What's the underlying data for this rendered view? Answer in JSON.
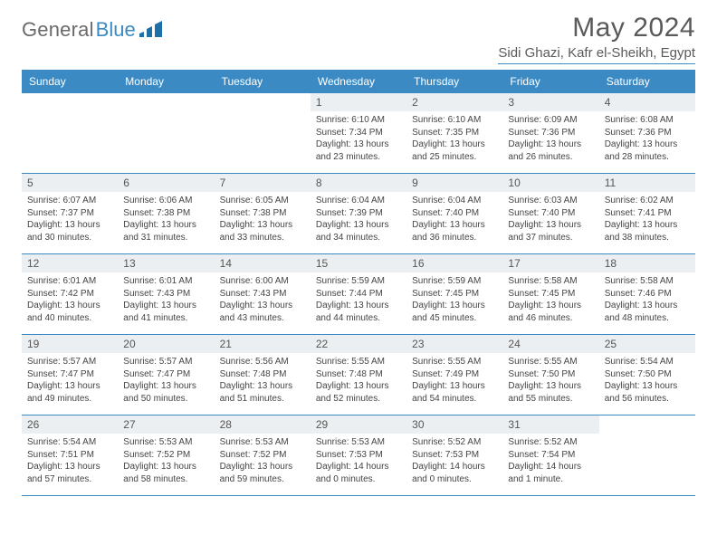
{
  "logo": {
    "text1": "General",
    "text2": "Blue"
  },
  "title": "May 2024",
  "location": "Sidi Ghazi, Kafr el-Sheikh, Egypt",
  "colors": {
    "accent": "#3b8ac4",
    "dayHeaderBg": "#eceff1",
    "text": "#444444"
  },
  "weekdays": [
    "Sunday",
    "Monday",
    "Tuesday",
    "Wednesday",
    "Thursday",
    "Friday",
    "Saturday"
  ],
  "weeks": [
    [
      {
        "n": "",
        "sr": "",
        "ss": "",
        "dl": ""
      },
      {
        "n": "",
        "sr": "",
        "ss": "",
        "dl": ""
      },
      {
        "n": "",
        "sr": "",
        "ss": "",
        "dl": ""
      },
      {
        "n": "1",
        "sr": "Sunrise: 6:10 AM",
        "ss": "Sunset: 7:34 PM",
        "dl": "Daylight: 13 hours and 23 minutes."
      },
      {
        "n": "2",
        "sr": "Sunrise: 6:10 AM",
        "ss": "Sunset: 7:35 PM",
        "dl": "Daylight: 13 hours and 25 minutes."
      },
      {
        "n": "3",
        "sr": "Sunrise: 6:09 AM",
        "ss": "Sunset: 7:36 PM",
        "dl": "Daylight: 13 hours and 26 minutes."
      },
      {
        "n": "4",
        "sr": "Sunrise: 6:08 AM",
        "ss": "Sunset: 7:36 PM",
        "dl": "Daylight: 13 hours and 28 minutes."
      }
    ],
    [
      {
        "n": "5",
        "sr": "Sunrise: 6:07 AM",
        "ss": "Sunset: 7:37 PM",
        "dl": "Daylight: 13 hours and 30 minutes."
      },
      {
        "n": "6",
        "sr": "Sunrise: 6:06 AM",
        "ss": "Sunset: 7:38 PM",
        "dl": "Daylight: 13 hours and 31 minutes."
      },
      {
        "n": "7",
        "sr": "Sunrise: 6:05 AM",
        "ss": "Sunset: 7:38 PM",
        "dl": "Daylight: 13 hours and 33 minutes."
      },
      {
        "n": "8",
        "sr": "Sunrise: 6:04 AM",
        "ss": "Sunset: 7:39 PM",
        "dl": "Daylight: 13 hours and 34 minutes."
      },
      {
        "n": "9",
        "sr": "Sunrise: 6:04 AM",
        "ss": "Sunset: 7:40 PM",
        "dl": "Daylight: 13 hours and 36 minutes."
      },
      {
        "n": "10",
        "sr": "Sunrise: 6:03 AM",
        "ss": "Sunset: 7:40 PM",
        "dl": "Daylight: 13 hours and 37 minutes."
      },
      {
        "n": "11",
        "sr": "Sunrise: 6:02 AM",
        "ss": "Sunset: 7:41 PM",
        "dl": "Daylight: 13 hours and 38 minutes."
      }
    ],
    [
      {
        "n": "12",
        "sr": "Sunrise: 6:01 AM",
        "ss": "Sunset: 7:42 PM",
        "dl": "Daylight: 13 hours and 40 minutes."
      },
      {
        "n": "13",
        "sr": "Sunrise: 6:01 AM",
        "ss": "Sunset: 7:43 PM",
        "dl": "Daylight: 13 hours and 41 minutes."
      },
      {
        "n": "14",
        "sr": "Sunrise: 6:00 AM",
        "ss": "Sunset: 7:43 PM",
        "dl": "Daylight: 13 hours and 43 minutes."
      },
      {
        "n": "15",
        "sr": "Sunrise: 5:59 AM",
        "ss": "Sunset: 7:44 PM",
        "dl": "Daylight: 13 hours and 44 minutes."
      },
      {
        "n": "16",
        "sr": "Sunrise: 5:59 AM",
        "ss": "Sunset: 7:45 PM",
        "dl": "Daylight: 13 hours and 45 minutes."
      },
      {
        "n": "17",
        "sr": "Sunrise: 5:58 AM",
        "ss": "Sunset: 7:45 PM",
        "dl": "Daylight: 13 hours and 46 minutes."
      },
      {
        "n": "18",
        "sr": "Sunrise: 5:58 AM",
        "ss": "Sunset: 7:46 PM",
        "dl": "Daylight: 13 hours and 48 minutes."
      }
    ],
    [
      {
        "n": "19",
        "sr": "Sunrise: 5:57 AM",
        "ss": "Sunset: 7:47 PM",
        "dl": "Daylight: 13 hours and 49 minutes."
      },
      {
        "n": "20",
        "sr": "Sunrise: 5:57 AM",
        "ss": "Sunset: 7:47 PM",
        "dl": "Daylight: 13 hours and 50 minutes."
      },
      {
        "n": "21",
        "sr": "Sunrise: 5:56 AM",
        "ss": "Sunset: 7:48 PM",
        "dl": "Daylight: 13 hours and 51 minutes."
      },
      {
        "n": "22",
        "sr": "Sunrise: 5:55 AM",
        "ss": "Sunset: 7:48 PM",
        "dl": "Daylight: 13 hours and 52 minutes."
      },
      {
        "n": "23",
        "sr": "Sunrise: 5:55 AM",
        "ss": "Sunset: 7:49 PM",
        "dl": "Daylight: 13 hours and 54 minutes."
      },
      {
        "n": "24",
        "sr": "Sunrise: 5:55 AM",
        "ss": "Sunset: 7:50 PM",
        "dl": "Daylight: 13 hours and 55 minutes."
      },
      {
        "n": "25",
        "sr": "Sunrise: 5:54 AM",
        "ss": "Sunset: 7:50 PM",
        "dl": "Daylight: 13 hours and 56 minutes."
      }
    ],
    [
      {
        "n": "26",
        "sr": "Sunrise: 5:54 AM",
        "ss": "Sunset: 7:51 PM",
        "dl": "Daylight: 13 hours and 57 minutes."
      },
      {
        "n": "27",
        "sr": "Sunrise: 5:53 AM",
        "ss": "Sunset: 7:52 PM",
        "dl": "Daylight: 13 hours and 58 minutes."
      },
      {
        "n": "28",
        "sr": "Sunrise: 5:53 AM",
        "ss": "Sunset: 7:52 PM",
        "dl": "Daylight: 13 hours and 59 minutes."
      },
      {
        "n": "29",
        "sr": "Sunrise: 5:53 AM",
        "ss": "Sunset: 7:53 PM",
        "dl": "Daylight: 14 hours and 0 minutes."
      },
      {
        "n": "30",
        "sr": "Sunrise: 5:52 AM",
        "ss": "Sunset: 7:53 PM",
        "dl": "Daylight: 14 hours and 0 minutes."
      },
      {
        "n": "31",
        "sr": "Sunrise: 5:52 AM",
        "ss": "Sunset: 7:54 PM",
        "dl": "Daylight: 14 hours and 1 minute."
      },
      {
        "n": "",
        "sr": "",
        "ss": "",
        "dl": ""
      }
    ]
  ]
}
